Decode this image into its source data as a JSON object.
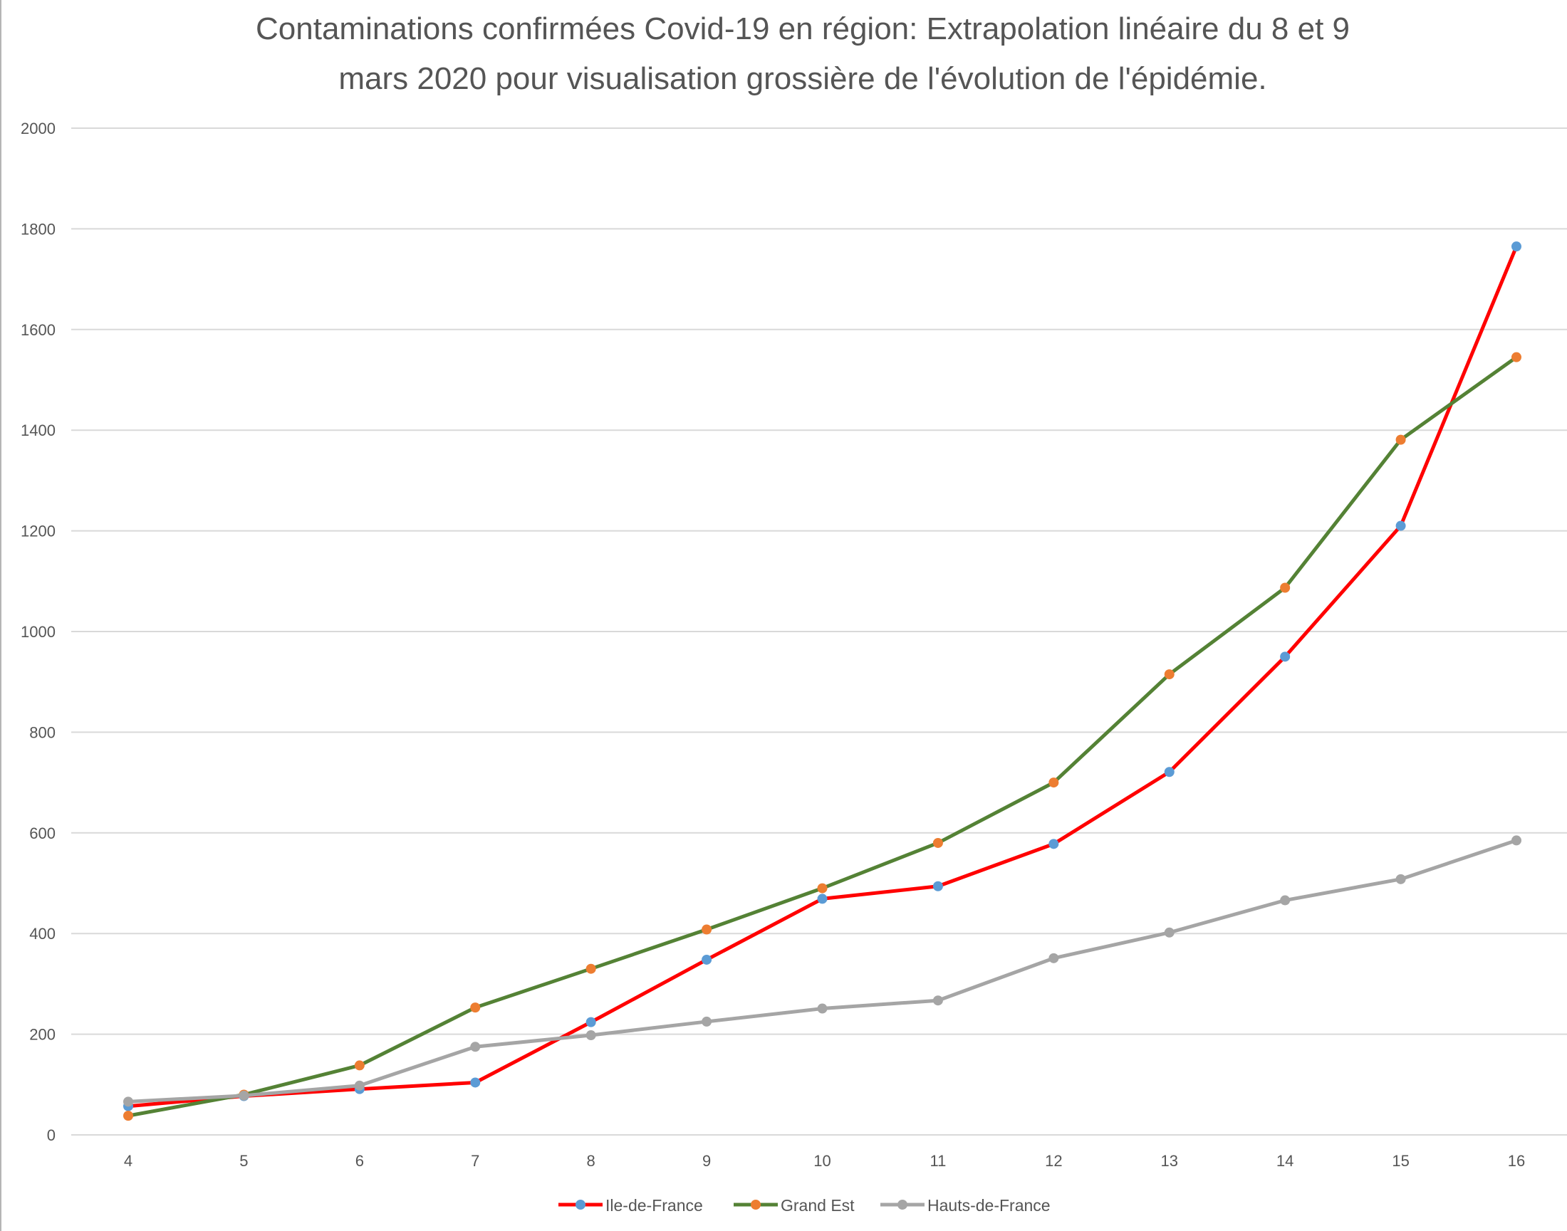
{
  "chart_data": {
    "type": "line",
    "title": "Contaminations confirmées Covid-19 en région: Extrapolation linéaire du 8 et 9",
    "subtitle": "mars 2020 pour visualisation grossière de l'évolution de l'épidémie.",
    "xlabel": "",
    "ylabel": "",
    "x": [
      4,
      5,
      6,
      7,
      8,
      9,
      10,
      11,
      12,
      13,
      14,
      15,
      16
    ],
    "ylim": [
      0,
      2000
    ],
    "yticks": [
      0,
      200,
      400,
      600,
      800,
      1000,
      1200,
      1400,
      1600,
      1800,
      2000
    ],
    "grid": true,
    "legend_position": "bottom",
    "series": [
      {
        "name": "Ile-de-France",
        "line_color": "#ff0000",
        "marker_color": "#5b9bd5",
        "values": [
          57,
          77,
          91,
          104,
          224,
          348,
          469,
          494,
          578,
          721,
          950,
          1210,
          1765
        ]
      },
      {
        "name": "Grand Est",
        "line_color": "#548235",
        "marker_color": "#ed7d31",
        "values": [
          38,
          80,
          138,
          253,
          330,
          408,
          490,
          580,
          700,
          915,
          1087,
          1381,
          1545
        ]
      },
      {
        "name": "Hauts-de-France",
        "line_color": "#a5a5a5",
        "marker_color": "#a5a5a5",
        "values": [
          66,
          78,
          98,
          175,
          198,
          225,
          251,
          267,
          351,
          402,
          466,
          508,
          585
        ]
      }
    ]
  }
}
